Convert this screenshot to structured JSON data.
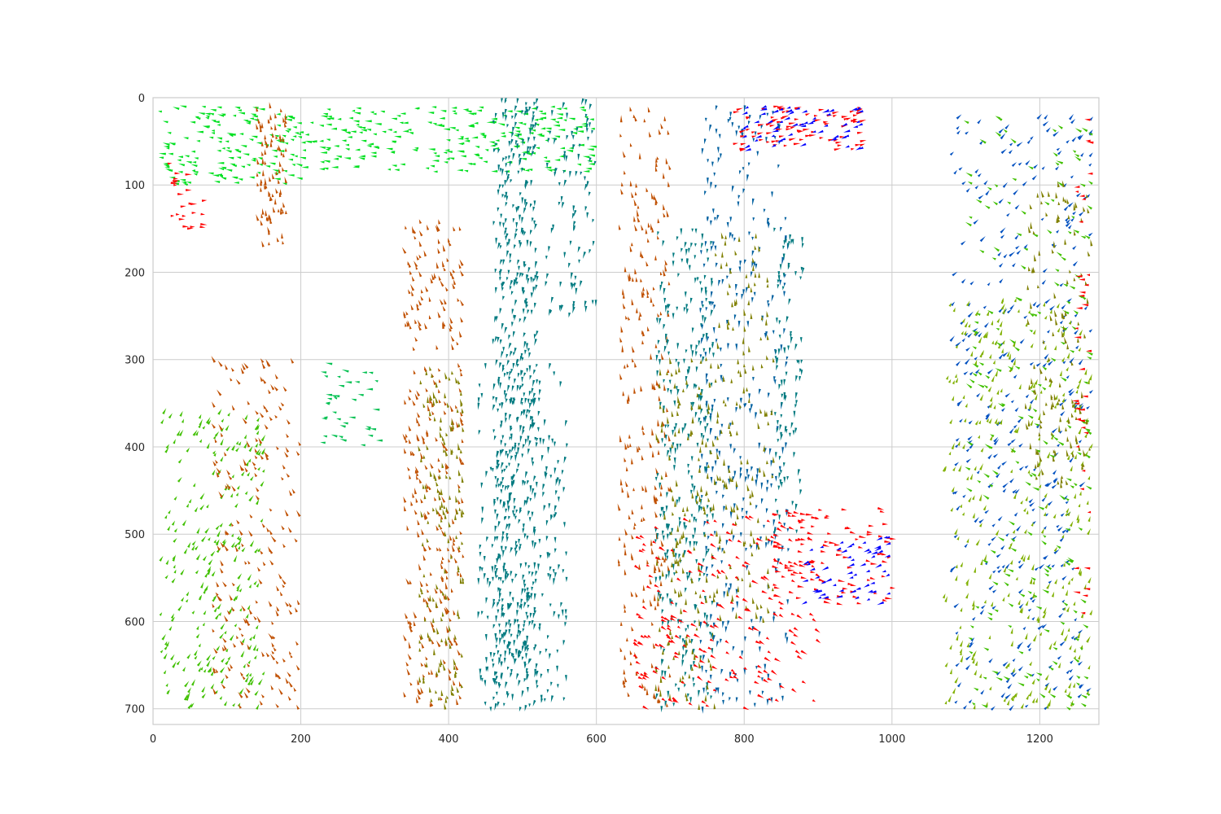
{
  "chart_data": {
    "type": "scatter",
    "subtype": "quiver",
    "title": "",
    "xlabel": "",
    "ylabel": "",
    "xlim": [
      0,
      1280
    ],
    "ylim": [
      718,
      0
    ],
    "y_inverted": true,
    "grid": true,
    "legend": "none",
    "xticks": [
      "0",
      "200",
      "400",
      "600",
      "800",
      "1000",
      "1200"
    ],
    "yticks": [
      "0",
      "100",
      "200",
      "300",
      "400",
      "500",
      "600",
      "700"
    ],
    "xtick_values": [
      0,
      200,
      400,
      600,
      800,
      1000,
      1200
    ],
    "ytick_values": [
      0,
      100,
      200,
      300,
      400,
      500,
      600,
      700
    ],
    "colors": {
      "right": "#ff0000",
      "right_down": "#c05000",
      "down": "#808000",
      "down_left": "#40c000",
      "left": "#00e020",
      "up": "#007a80",
      "up_right": "#0050c0",
      "up_left": "#0000ff"
    },
    "series": [
      {
        "xr": [
          10,
          200
        ],
        "yr": [
          10,
          100
        ],
        "angle": 170,
        "color": "#00e020",
        "count": 160
      },
      {
        "xr": [
          200,
          600
        ],
        "yr": [
          10,
          85
        ],
        "angle": 175,
        "color": "#00e020",
        "count": 260
      },
      {
        "xr": [
          140,
          180
        ],
        "yr": [
          10,
          170
        ],
        "angle": 100,
        "color": "#c05000",
        "count": 90
      },
      {
        "xr": [
          20,
          70
        ],
        "yr": [
          75,
          150
        ],
        "angle": 0,
        "color": "#ff0000",
        "count": 25
      },
      {
        "xr": [
          460,
          520
        ],
        "yr": [
          0,
          700
        ],
        "angle": 260,
        "color": "#007a80",
        "count": 520
      },
      {
        "xr": [
          440,
          560
        ],
        "yr": [
          300,
          700
        ],
        "angle": 265,
        "color": "#007a80",
        "count": 260
      },
      {
        "xr": [
          340,
          420
        ],
        "yr": [
          140,
          700
        ],
        "angle": 110,
        "color": "#c05000",
        "count": 300
      },
      {
        "xr": [
          360,
          420
        ],
        "yr": [
          300,
          700
        ],
        "angle": 100,
        "color": "#808000",
        "count": 160
      },
      {
        "xr": [
          530,
          600
        ],
        "yr": [
          0,
          250
        ],
        "angle": 260,
        "color": "#007a80",
        "count": 90
      },
      {
        "xr": [
          10,
          150
        ],
        "yr": [
          360,
          700
        ],
        "angle": 60,
        "color": "#40c000",
        "count": 260
      },
      {
        "xr": [
          80,
          200
        ],
        "yr": [
          300,
          700
        ],
        "angle": 120,
        "color": "#c05000",
        "count": 200
      },
      {
        "xr": [
          230,
          310
        ],
        "yr": [
          300,
          400
        ],
        "angle": 170,
        "color": "#00c050",
        "count": 40
      },
      {
        "xr": [
          630,
          700
        ],
        "yr": [
          10,
          700
        ],
        "angle": 100,
        "color": "#c05000",
        "count": 240
      },
      {
        "xr": [
          680,
          760
        ],
        "yr": [
          150,
          700
        ],
        "angle": 265,
        "color": "#007a80",
        "count": 300
      },
      {
        "xr": [
          680,
          760
        ],
        "yr": [
          300,
          700
        ],
        "angle": 95,
        "color": "#808000",
        "count": 160
      },
      {
        "xr": [
          740,
          860
        ],
        "yr": [
          10,
          700
        ],
        "angle": 265,
        "color": "#0060a0",
        "count": 330
      },
      {
        "xr": [
          760,
          840
        ],
        "yr": [
          150,
          600
        ],
        "angle": 95,
        "color": "#808000",
        "count": 150
      },
      {
        "xr": [
          840,
          880
        ],
        "yr": [
          150,
          500
        ],
        "angle": 265,
        "color": "#007a80",
        "count": 100
      },
      {
        "xr": [
          650,
          900
        ],
        "yr": [
          480,
          700
        ],
        "angle": 330,
        "color": "#ff0000",
        "count": 200
      },
      {
        "xr": [
          840,
          1000
        ],
        "yr": [
          470,
          580
        ],
        "angle": 350,
        "color": "#ff0000",
        "count": 120
      },
      {
        "xr": [
          880,
          1000
        ],
        "yr": [
          500,
          580
        ],
        "angle": 200,
        "color": "#0000ff",
        "count": 60
      },
      {
        "xr": [
          780,
          960
        ],
        "yr": [
          10,
          60
        ],
        "angle": 10,
        "color": "#ff0000",
        "count": 90
      },
      {
        "xr": [
          800,
          960
        ],
        "yr": [
          10,
          60
        ],
        "angle": 200,
        "color": "#0000ff",
        "count": 60
      },
      {
        "xr": [
          1080,
          1270
        ],
        "yr": [
          20,
          700
        ],
        "angle": 45,
        "color": "#0050c0",
        "count": 360
      },
      {
        "xr": [
          1070,
          1270
        ],
        "yr": [
          230,
          700
        ],
        "angle": 70,
        "color": "#80b000",
        "count": 320
      },
      {
        "xr": [
          1100,
          1270
        ],
        "yr": [
          10,
          700
        ],
        "angle": 150,
        "color": "#40c000",
        "count": 220
      },
      {
        "xr": [
          1180,
          1270
        ],
        "yr": [
          100,
          450
        ],
        "angle": 100,
        "color": "#808000",
        "count": 130
      },
      {
        "xr": [
          1250,
          1270
        ],
        "yr": [
          20,
          600
        ],
        "angle": 180,
        "color": "#ff0000",
        "count": 40
      }
    ]
  }
}
